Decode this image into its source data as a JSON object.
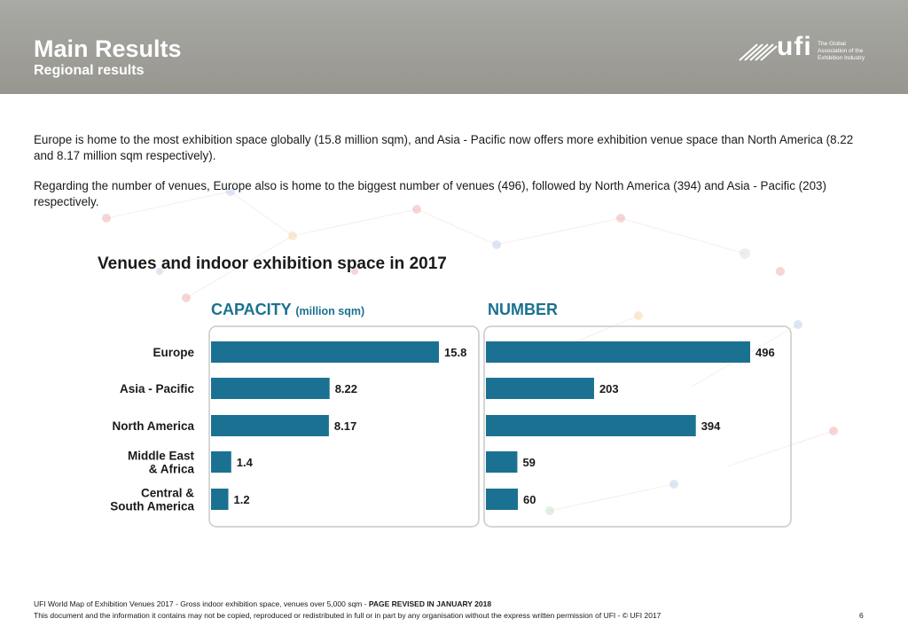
{
  "header": {
    "title": "Main Results",
    "subtitle": "Regional results"
  },
  "logo": {
    "brand": "ufi",
    "tagline_1": "The Global",
    "tagline_2": "Association of the",
    "tagline_3": "Exhibition Industry"
  },
  "body": {
    "paragraph_1": "Europe is home to the most exhibition space globally (15.8 million sqm), and Asia - Pacific now offers more exhibition venue space than North America (8.22 and 8.17 million sqm respectively).",
    "paragraph_2": "Regarding the number of venues, Europe also is home to the biggest number of venues (496), followed by North America (394) and Asia - Pacific (203) respectively."
  },
  "chart_data": {
    "type": "bar",
    "orientation": "horizontal",
    "title": "Venues and indoor exhibition space in 2017",
    "bar_color": "#1b7191",
    "categories": [
      "Europe",
      "Asia - Pacific",
      "North America",
      "Middle East & Africa",
      "Central & South America"
    ],
    "category_lines": [
      [
        "Europe"
      ],
      [
        "Asia - Pacific"
      ],
      [
        "North America"
      ],
      [
        "Middle East",
        "& Africa"
      ],
      [
        "Central &",
        "South America"
      ]
    ],
    "panels": [
      {
        "title": "CAPACITY",
        "unit": "(million sqm)",
        "values": [
          15.8,
          8.22,
          8.17,
          1.4,
          1.2
        ],
        "labels": [
          "15.8",
          "8.22",
          "8.17",
          "1.4",
          "1.2"
        ],
        "xlim": [
          0,
          15.8
        ]
      },
      {
        "title": "NUMBER",
        "unit": "",
        "values": [
          496,
          203,
          394,
          59,
          60
        ],
        "labels": [
          "496",
          "203",
          "394",
          "59",
          "60"
        ],
        "xlim": [
          0,
          496
        ]
      }
    ]
  },
  "footer": {
    "source": "UFI World Map of Exhibition Venues 2017 - Gross indoor exhibition space, venues over 5,000 sqm - ",
    "revised": "PAGE REVISED IN JANUARY 2018",
    "copyright": "This document and the information it contains may not be copied, reproduced or redistributed in full or in part by any organisation without the express written permission of UFI - © UFI 2017",
    "page_number": "6"
  }
}
